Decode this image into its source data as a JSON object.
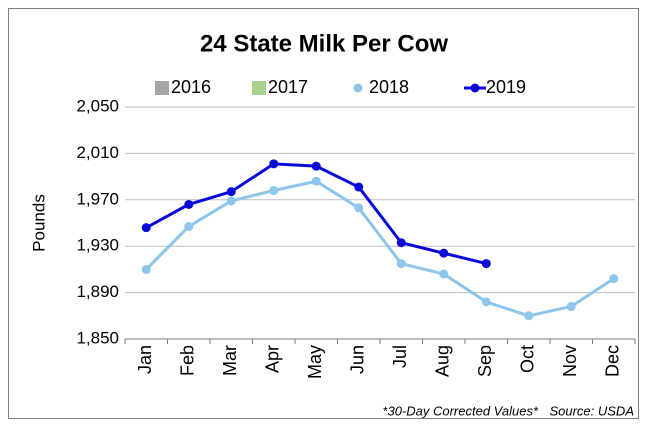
{
  "chart_data": {
    "type": "line",
    "title": "24 State Milk Per Cow",
    "y_label": "Pounds",
    "categories": [
      "Jan",
      "Feb",
      "Mar",
      "Apr",
      "May",
      "Jun",
      "Jul",
      "Aug",
      "Sep",
      "Oct",
      "Nov",
      "Dec"
    ],
    "series": [
      {
        "name": "2016",
        "color": "#a6a6a6",
        "marker": "square",
        "values": [
          null,
          null,
          null,
          null,
          null,
          null,
          null,
          null,
          null,
          null,
          null,
          null
        ]
      },
      {
        "name": "2017",
        "color": "#a9d18e",
        "marker": "square",
        "values": [
          null,
          null,
          null,
          null,
          null,
          null,
          null,
          null,
          null,
          null,
          null,
          null
        ]
      },
      {
        "name": "2018",
        "color": "#8ec5ea",
        "marker": "circle",
        "values": [
          1910,
          1947,
          1969,
          1978,
          1986,
          1963,
          1915,
          1906,
          1882,
          1870,
          1878,
          1902
        ]
      },
      {
        "name": "2019",
        "color": "#0a0ad8",
        "marker": "circle",
        "values": [
          1946,
          1966,
          1977,
          2001,
          1999,
          1981,
          1933,
          1924,
          1915,
          null,
          null,
          null
        ]
      }
    ],
    "ylim": [
      1850,
      2050
    ],
    "yticks": [
      {
        "value": 1850,
        "label": "1,850"
      },
      {
        "value": 1890,
        "label": "1,890"
      },
      {
        "value": 1930,
        "label": "1,930"
      },
      {
        "value": 1970,
        "label": "1,970"
      },
      {
        "value": 2010,
        "label": "2,010"
      },
      {
        "value": 2050,
        "label": "2,050"
      }
    ],
    "grid": true,
    "legend": "top",
    "annotations": [
      "*30-Day Corrected Values*",
      "Source: USDA"
    ]
  }
}
